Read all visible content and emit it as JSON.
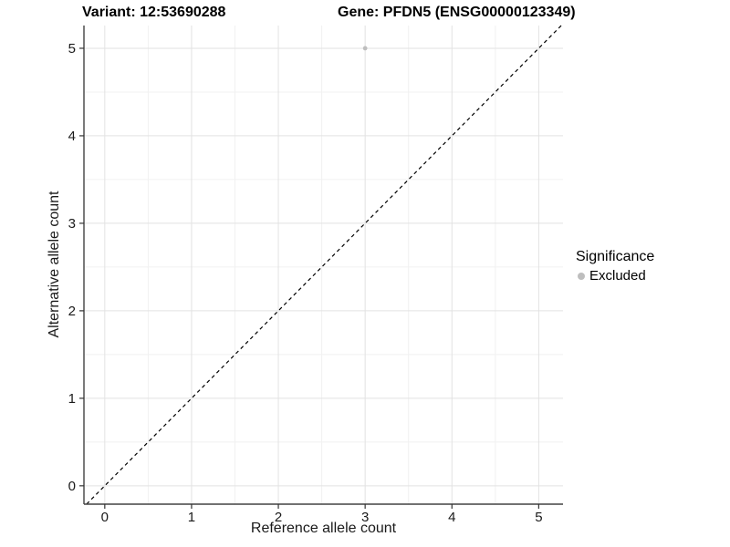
{
  "titles": {
    "variant": "Variant: 12:53690288",
    "gene": "Gene: PFDN5 (ENSG00000123349)"
  },
  "chart_data": {
    "type": "scatter",
    "title_left": "Variant: 12:53690288",
    "title_right": "Gene: PFDN5 (ENSG00000123349)",
    "xlabel": "Reference allele count",
    "ylabel": "Alternative allele count",
    "xlim": [
      -0.24,
      5.28
    ],
    "ylim": [
      -0.21,
      5.26
    ],
    "xticks": [
      0,
      1,
      2,
      3,
      4,
      5
    ],
    "yticks": [
      0,
      1,
      2,
      3,
      4,
      5
    ],
    "minor_step": 0.5,
    "grid": "major+minor",
    "points": [
      {
        "x": 3,
        "y": 5,
        "series": "Excluded"
      }
    ],
    "identity_line": {
      "style": "dashed",
      "equation": "y=x"
    },
    "legend": {
      "title": "Significance",
      "position": "right",
      "items": [
        {
          "label": "Excluded",
          "color": "#bebebe"
        }
      ]
    },
    "colors": {
      "point": "#bebebe",
      "grid_major": "#e2e2e2",
      "grid_minor": "#f1f1f1",
      "axis_line": "#424242",
      "tick_mark": "#333333",
      "dashed_line": "#000000",
      "background": "#ffffff"
    }
  }
}
